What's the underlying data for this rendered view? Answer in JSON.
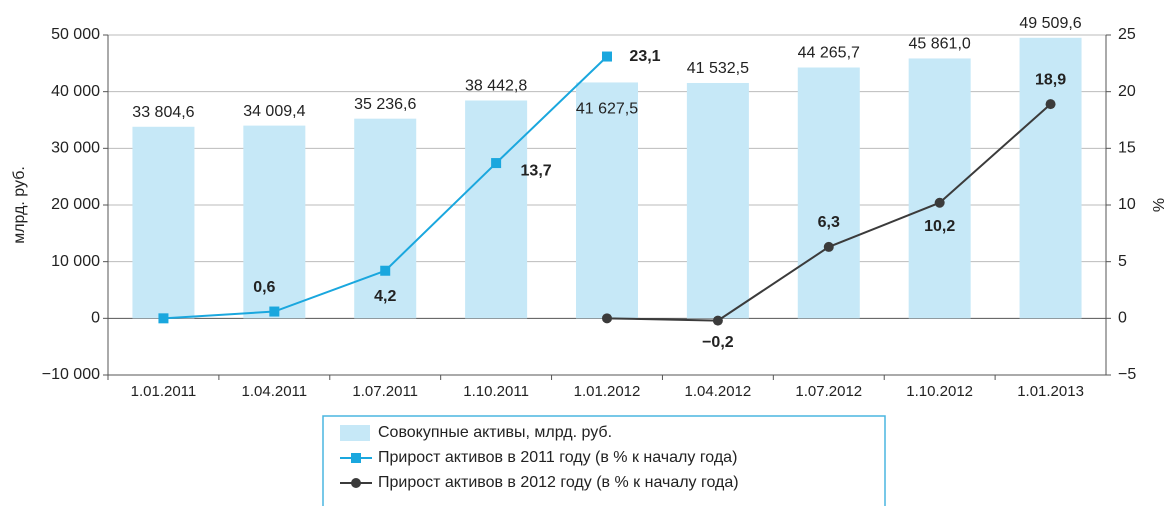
{
  "chart_data": {
    "type": "bar_line",
    "y_label": "млрд. руб.",
    "y2_label": "%",
    "categories": [
      "1.01.2011",
      "1.04.2011",
      "1.07.2011",
      "1.10.2011",
      "1.01.2012",
      "1.04.2012",
      "1.07.2012",
      "1.10.2012",
      "1.01.2013"
    ],
    "series": [
      {
        "name": "Совокупные активы, млрд. руб.",
        "type": "bar",
        "color": "#c6e8f7",
        "values": [
          33804.6,
          34009.4,
          35236.6,
          38442.8,
          41627.5,
          41532.5,
          44265.7,
          45861.0,
          49509.6
        ],
        "value_labels": [
          "33 804,6",
          "34 009,4",
          "35 236,6",
          "38 442,8",
          "41 627,5",
          "41 532,5",
          "44 265,7",
          "45 861,0",
          "49 509,6"
        ]
      },
      {
        "name": "Прирост активов в 2011 году (в % к началу года)",
        "type": "line",
        "axis": "y2",
        "color": "#1aa7de",
        "marker": "square",
        "values": [
          0,
          0.6,
          4.2,
          13.7,
          23.1,
          null,
          null,
          null,
          null
        ],
        "value_labels": [
          null,
          "0,6",
          "4,2",
          "13,7",
          "23,1",
          null,
          null,
          null,
          null
        ]
      },
      {
        "name": "Прирост активов в 2012 году (в % к началу года)",
        "type": "line",
        "axis": "y2",
        "color": "#3b3b3b",
        "marker": "circle",
        "values": [
          null,
          null,
          null,
          null,
          0,
          -0.2,
          6.3,
          10.2,
          18.9
        ],
        "value_labels": [
          null,
          null,
          null,
          null,
          null,
          "−0,2",
          "6,3",
          "10,2",
          "18,9"
        ]
      }
    ],
    "ylim": [
      -10000,
      50000
    ],
    "yticks": [
      {
        "value": -10000,
        "label": "−10 000"
      },
      0,
      {
        "value": 10000,
        "label": "10 000"
      },
      {
        "value": 20000,
        "label": "20 000"
      },
      {
        "value": 30000,
        "label": "30 000"
      },
      {
        "value": 40000,
        "label": "40 000"
      },
      {
        "value": 50000,
        "label": "50 000"
      }
    ],
    "y2lim": [
      -5,
      25
    ],
    "y2ticks": [
      {
        "value": -5,
        "label": "−5"
      },
      0,
      5,
      10,
      15,
      20,
      25
    ],
    "grid": true,
    "legend": "bottom"
  }
}
